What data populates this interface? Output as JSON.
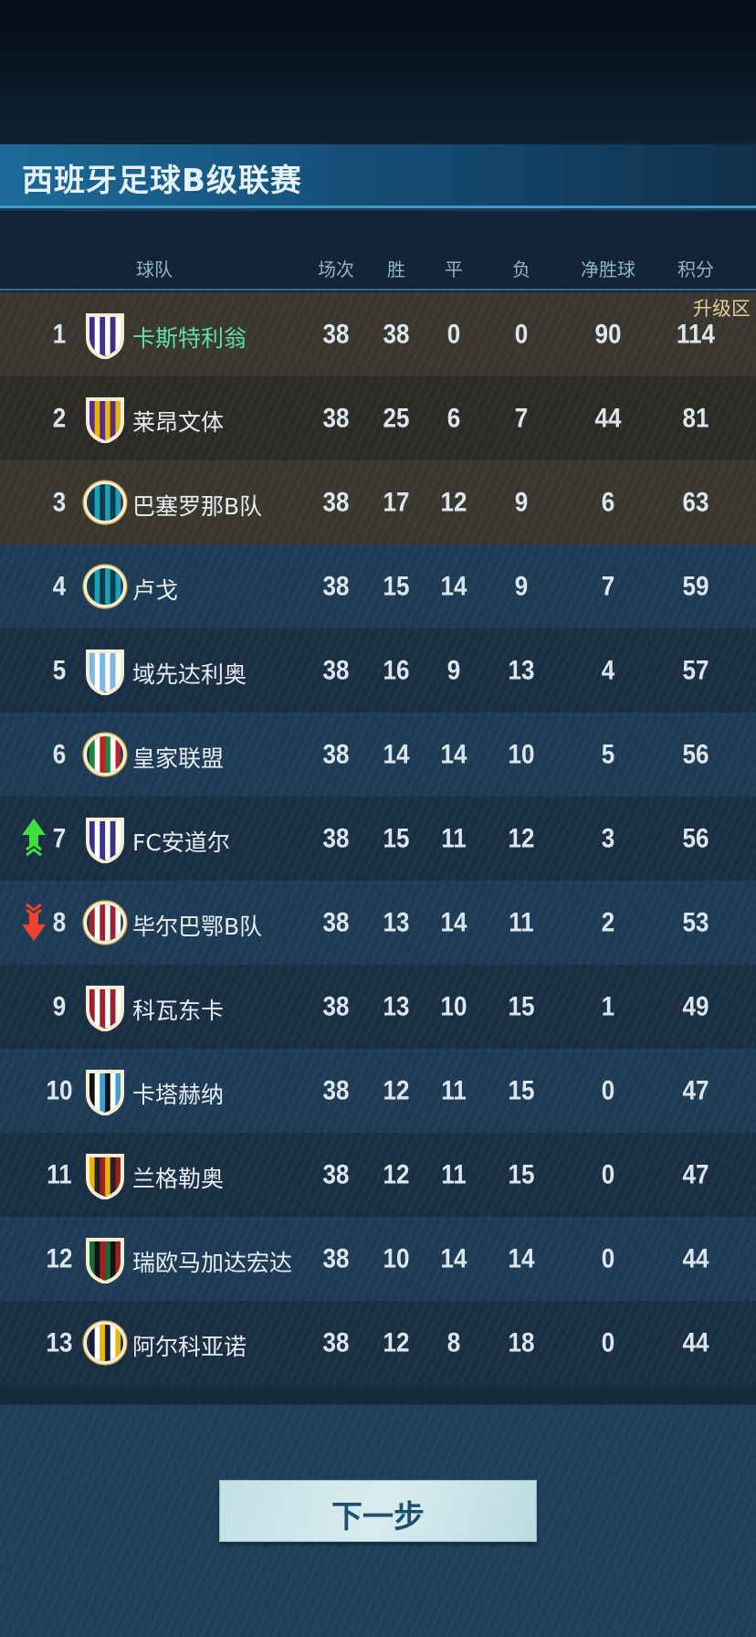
{
  "title": "西班牙足球B级联赛",
  "headers": {
    "team": "球队",
    "played": "场次",
    "won": "胜",
    "drawn": "平",
    "lost": "负",
    "gd": "净胜球",
    "points": "积分"
  },
  "zone_label": "升级区",
  "colors": {
    "promotion_row": "#3a3730",
    "highlight_name": "#5fe0a8",
    "up": "#3ee03e",
    "down": "#f0402e"
  },
  "rows": [
    {
      "rank": "1",
      "name": "卡斯特利翁",
      "played": "38",
      "won": "38",
      "drawn": "0",
      "lost": "0",
      "gd": "90",
      "points": "114",
      "badge": {
        "shape": "shield",
        "colors": [
          "#3a2f8a",
          "#ffffff"
        ]
      },
      "highlight": true,
      "zone": true
    },
    {
      "rank": "2",
      "name": "莱昂文体",
      "played": "38",
      "won": "25",
      "drawn": "6",
      "lost": "7",
      "gd": "44",
      "points": "81",
      "badge": {
        "shape": "shield",
        "colors": [
          "#5a2a8a",
          "#e8b800"
        ]
      },
      "zone": true
    },
    {
      "rank": "3",
      "name": "巴塞罗那B队",
      "played": "38",
      "won": "17",
      "drawn": "12",
      "lost": "9",
      "gd": "6",
      "points": "63",
      "badge": {
        "shape": "circle",
        "colors": [
          "#0a3a4a",
          "#1aa0b8"
        ]
      },
      "zone": true
    },
    {
      "rank": "4",
      "name": "卢戈",
      "played": "38",
      "won": "15",
      "drawn": "14",
      "lost": "9",
      "gd": "7",
      "points": "59",
      "badge": {
        "shape": "circle",
        "colors": [
          "#0a3a4a",
          "#1aa0b8"
        ]
      }
    },
    {
      "rank": "5",
      "name": "域先达利奥",
      "played": "38",
      "won": "16",
      "drawn": "9",
      "lost": "13",
      "gd": "4",
      "points": "57",
      "badge": {
        "shape": "shield",
        "colors": [
          "#7ab8e8",
          "#ffffff"
        ]
      }
    },
    {
      "rank": "6",
      "name": "皇家联盟",
      "played": "38",
      "won": "14",
      "drawn": "14",
      "lost": "10",
      "gd": "5",
      "points": "56",
      "badge": {
        "shape": "circle",
        "colors": [
          "#1a8a3a",
          "#ffffff",
          "#c02020"
        ]
      }
    },
    {
      "rank": "7",
      "name": "FC安道尔",
      "played": "38",
      "won": "15",
      "drawn": "11",
      "lost": "12",
      "gd": "3",
      "points": "56",
      "badge": {
        "shape": "shield",
        "colors": [
          "#3a2f8a",
          "#ffffff"
        ]
      },
      "move": "up"
    },
    {
      "rank": "8",
      "name": "毕尔巴鄂B队",
      "played": "38",
      "won": "13",
      "drawn": "14",
      "lost": "11",
      "gd": "2",
      "points": "53",
      "badge": {
        "shape": "circle",
        "colors": [
          "#a02030",
          "#ffffff"
        ]
      },
      "move": "down"
    },
    {
      "rank": "9",
      "name": "科瓦东卡",
      "played": "38",
      "won": "13",
      "drawn": "10",
      "lost": "15",
      "gd": "1",
      "points": "49",
      "badge": {
        "shape": "shield",
        "colors": [
          "#a02030",
          "#ffffff"
        ]
      }
    },
    {
      "rank": "10",
      "name": "卡塔赫纳",
      "played": "38",
      "won": "12",
      "drawn": "11",
      "lost": "15",
      "gd": "0",
      "points": "47",
      "badge": {
        "shape": "shield",
        "colors": [
          "#111111",
          "#ffffff",
          "#3aa0d8"
        ]
      }
    },
    {
      "rank": "11",
      "name": "兰格勒奥",
      "played": "38",
      "won": "12",
      "drawn": "11",
      "lost": "15",
      "gd": "0",
      "points": "47",
      "badge": {
        "shape": "shield",
        "colors": [
          "#e8b800",
          "#222222",
          "#a02020"
        ]
      }
    },
    {
      "rank": "12",
      "name": "瑞欧马加达宏达",
      "played": "38",
      "won": "10",
      "drawn": "14",
      "lost": "14",
      "gd": "0",
      "points": "44",
      "badge": {
        "shape": "shield",
        "colors": [
          "#1a6a3a",
          "#111111",
          "#a02020"
        ]
      }
    },
    {
      "rank": "13",
      "name": "阿尔科亚诺",
      "played": "38",
      "won": "12",
      "drawn": "8",
      "lost": "18",
      "gd": "0",
      "points": "44",
      "badge": {
        "shape": "circle",
        "colors": [
          "#1a1a3a",
          "#ffffff",
          "#e8b800"
        ]
      }
    }
  ],
  "next_button": "下一步"
}
